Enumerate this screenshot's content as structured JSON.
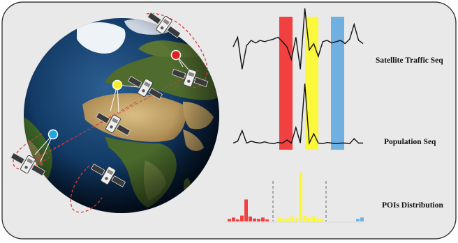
{
  "labels": {
    "satellite_traffic": "Satellite Traffic Seq",
    "population": "Population Seq",
    "pois": "POIs Distribution"
  },
  "colors": {
    "panel_bg": "#e9e9e9",
    "panel_border": "#3a3a3a",
    "ocean": "#123a66",
    "land_green": "#4f6b2e",
    "land_desert": "#c9ad72",
    "ice": "#eef3f8",
    "orbit": "#d43a3a",
    "marker_red": "#e02121",
    "marker_yellow": "#f5ee2a",
    "marker_blue": "#1fa5e0",
    "band_red": "#f04040",
    "band_yellow": "#fbf73a",
    "band_blue": "#6fb0e0"
  },
  "diagram": {
    "satellites": [
      {
        "name": "satellite-top"
      },
      {
        "name": "satellite-right"
      },
      {
        "name": "satellite-center"
      },
      {
        "name": "satellite-middle"
      },
      {
        "name": "satellite-left"
      },
      {
        "name": "satellite-bottom"
      }
    ],
    "markers": [
      {
        "name": "marker-red",
        "color": "#e02121"
      },
      {
        "name": "marker-yellow",
        "color": "#f5ee2a"
      },
      {
        "name": "marker-blue",
        "color": "#1fa5e0"
      }
    ],
    "traffic_seq": [
      0.4,
      0.55,
      0.05,
      0.42,
      0.5,
      0.46,
      0.5,
      0.48,
      0.5,
      0.52,
      0.55,
      0.48,
      0.4,
      0.2,
      0.55,
      0.05,
      1.0,
      0.35,
      0.45,
      0.25,
      0.48,
      0.5,
      0.46,
      0.48,
      0.5,
      0.45,
      0.52,
      0.75,
      0.5,
      0.45
    ],
    "population_seq": [
      0.05,
      0.08,
      0.25,
      0.05,
      0.08,
      0.06,
      0.05,
      0.07,
      0.05,
      0.04,
      0.06,
      0.05,
      0.1,
      0.05,
      0.3,
      0.05,
      1.0,
      0.05,
      0.2,
      0.05,
      0.04,
      0.06,
      0.05,
      0.04,
      0.05,
      0.05,
      0.04,
      0.12,
      0.05,
      0.05
    ],
    "pois": {
      "red": [
        0.05,
        0.08,
        0.04,
        0.12,
        0.45,
        0.1,
        0.06,
        0.05,
        0.08,
        0.04
      ],
      "yellow": [
        0.08,
        0.05,
        0.06,
        0.1,
        0.08,
        1.0,
        0.12,
        0.08,
        0.1,
        0.06,
        0.05
      ],
      "blue": [
        0.05,
        0.08
      ]
    }
  }
}
